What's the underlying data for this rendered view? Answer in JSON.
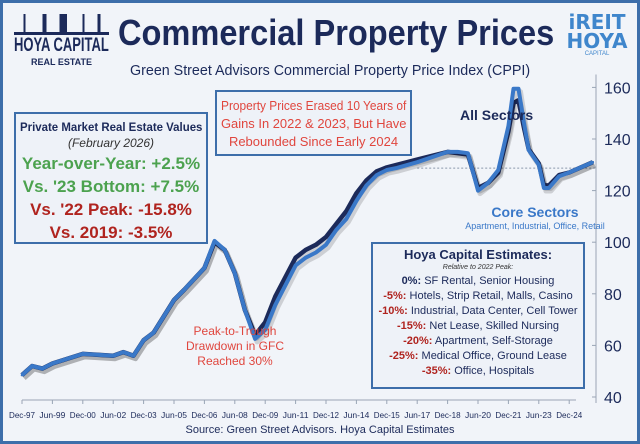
{
  "header": {
    "logo_left_line1": "HOYA CAPITAL",
    "logo_left_line2": "REAL ESTATE",
    "title": "Commercial Property Prices",
    "subtitle": "Green Street Advisors Commercial Property Price Index (CPPI)",
    "logo_right_line1": "iREIT",
    "logo_right_line2": "HOYA",
    "logo_right_line3": "CAPITAL"
  },
  "stats_box": {
    "heading": "Private Market Real Estate Values",
    "date": "(February 2026)",
    "lines": [
      {
        "text": "Year-over-Year: +2.5%",
        "color": "#4ca24f"
      },
      {
        "text": "Vs. '23 Bottom: +7.5%",
        "color": "#4ca24f"
      },
      {
        "text": "Vs. '22 Peak: -15.8%",
        "color": "#b0241f"
      },
      {
        "text": "Vs. 2019: -3.5%",
        "color": "#b0241f"
      }
    ]
  },
  "callout": {
    "line1": "Property Prices Erased 10 Years of",
    "line2": "Gains In 2022 & 2023, But Have",
    "line3": "Rebounded Since Early 2024"
  },
  "estimates_box": {
    "heading": "Hoya Capital Estimates:",
    "subheading": "Relative to 2022 Peak:",
    "rows": [
      {
        "pct": "0%:",
        "sectors": "SF Rental, Senior Housing"
      },
      {
        "pct": "-5%:",
        "sectors": "Hotels, Strip Retail, Malls, Casino"
      },
      {
        "pct": "-10%:",
        "sectors": "Industrial, Data Center, Cell Tower"
      },
      {
        "pct": "-15%:",
        "sectors": "Net Lease, Skilled Nursing"
      },
      {
        "pct": "-20%:",
        "sectors": "Apartment, Self-Storage"
      },
      {
        "pct": "-25%:",
        "sectors": "Medical Office, Ground Lease"
      },
      {
        "pct": "-35%:",
        "sectors": "Office, Hospitals"
      }
    ]
  },
  "annotations": {
    "all_sectors": "All Sectors",
    "core_sectors": "Core Sectors",
    "core_sectors_sub": "Apartment, Industrial, Office, Retail",
    "gfc_line1": "Peak-to-Trough",
    "gfc_line2": "Drawdown in GFC",
    "gfc_line3": "Reached 30%"
  },
  "source": "Source: Green Street Advisors. Hoya Capital Estimates",
  "chart_data": {
    "type": "line",
    "title": "Commercial Property Prices",
    "subtitle": "Green Street Advisors Commercial Property Price Index (CPPI)",
    "xlabel": "",
    "ylabel": "",
    "ylim": [
      40,
      160
    ],
    "y_ticks": [
      40,
      60,
      80,
      100,
      120,
      140,
      160
    ],
    "y_axis_side": "right",
    "x_tick_labels": [
      "Dec-97",
      "Jun-99",
      "Dec-00",
      "Jun-02",
      "Dec-03",
      "Jun-05",
      "Dec-06",
      "Jun-08",
      "Dec-09",
      "Jun-11",
      "Dec-12",
      "Jun-14",
      "Dec-15",
      "Jun-17",
      "Dec-18",
      "Jun-20",
      "Dec-21",
      "Jun-23",
      "Dec-24"
    ],
    "grid": false,
    "reference_line": {
      "value": 128.7,
      "style": "dotted",
      "from": "2017-06"
    },
    "colors": {
      "all_sectors": "#1c2a5a",
      "core_sectors": "#3a78c8"
    },
    "x": [
      "1997-12",
      "1998-06",
      "1998-12",
      "1999-06",
      "2000-12",
      "2002-06",
      "2002-12",
      "2003-06",
      "2003-12",
      "2004-06",
      "2005-06",
      "2005-12",
      "2006-12",
      "2007-06",
      "2007-12",
      "2008-06",
      "2008-12",
      "2009-06",
      "2009-12",
      "2010-06",
      "2011-06",
      "2011-12",
      "2012-06",
      "2012-12",
      "2013-06",
      "2013-12",
      "2014-06",
      "2014-12",
      "2015-06",
      "2015-12",
      "2016-06",
      "2017-06",
      "2018-12",
      "2019-06",
      "2019-12",
      "2020-06",
      "2020-12",
      "2021-06",
      "2021-12",
      "2022-03",
      "2022-06",
      "2022-09",
      "2022-12",
      "2023-06",
      "2023-09",
      "2023-12",
      "2024-06",
      "2024-12",
      "2026-02"
    ],
    "series": [
      {
        "name": "All Sectors",
        "values": [
          48.5,
          52,
          51,
          53,
          56.7,
          56,
          57.4,
          56,
          62,
          65,
          77.6,
          81.5,
          90,
          100,
          97,
          88,
          73.7,
          64,
          69,
          79,
          94,
          97,
          99,
          102,
          107,
          112,
          119,
          124,
          127.5,
          129,
          130,
          132,
          135,
          134.5,
          134,
          121,
          123,
          127,
          143,
          154,
          155,
          145,
          136,
          130.5,
          122,
          122,
          126,
          127,
          131
        ]
      },
      {
        "name": "Core Sectors",
        "values": [
          48.5,
          52,
          51,
          53,
          56.7,
          56,
          57.4,
          56,
          62,
          65,
          77.6,
          81.5,
          90,
          100.5,
          97,
          88,
          73.7,
          62.5,
          66,
          75.7,
          91,
          94,
          96,
          99,
          104.7,
          109,
          116,
          122,
          126,
          128,
          128.8,
          131,
          135,
          135,
          134.5,
          120,
          123,
          128,
          145,
          159.5,
          159.5,
          147,
          135.7,
          130,
          121,
          121,
          125.6,
          127,
          131
        ]
      }
    ]
  }
}
